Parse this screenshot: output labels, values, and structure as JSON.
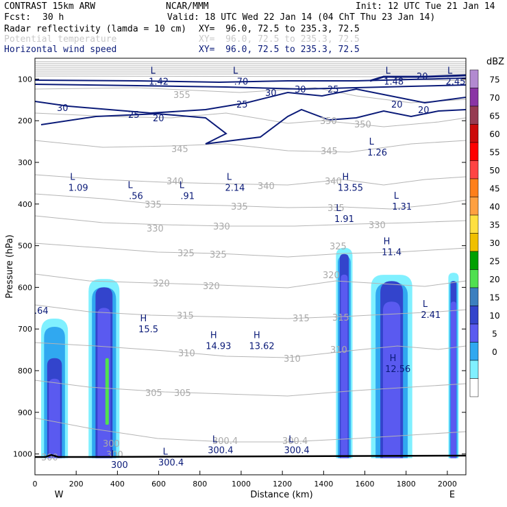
{
  "header": {
    "model": "CONTRAST 15km ARW",
    "org": "NCAR/MMM",
    "init": "Init: 12 UTC Tue 21 Jan 14",
    "fcst_label": "Fcst:",
    "fcst_value": "30 h",
    "valid": "Valid: 18 UTC Wed 22 Jan 14 (04 ChT Thu 23 Jan 14)",
    "fields": [
      {
        "name": "Radar reflectivity (lamda = 10 cm)",
        "xy": "XY=  96.0, 72.5 to 235.3, 72.5",
        "color": "#000000"
      },
      {
        "name": "Potential temperature",
        "xy": "XY=  96.0, 72.5 to 235.3, 72.5",
        "color": "#c8c8c8"
      },
      {
        "name": "Horizontal wind speed",
        "xy": "XY=  96.0, 72.5 to 235.3, 72.5",
        "color": "#0a1a78"
      }
    ]
  },
  "chart_data": {
    "type": "heatmap",
    "xlabel": "Distance (km)",
    "ylabel": "Pressure (hPa)",
    "xlim": [
      0,
      2090
    ],
    "ylim": [
      1050,
      50
    ],
    "x_ticks": [
      "0",
      "200",
      "400",
      "600",
      "800",
      "1000",
      "1200",
      "1400",
      "1600",
      "1800",
      "2000"
    ],
    "x_tick_values": [
      0,
      200,
      400,
      600,
      800,
      1000,
      1200,
      1400,
      1600,
      1800,
      2000
    ],
    "y_ticks": [
      "100",
      "200",
      "300",
      "400",
      "500",
      "600",
      "700",
      "800",
      "900",
      "1000"
    ],
    "y_tick_values": [
      100,
      200,
      300,
      400,
      500,
      600,
      700,
      800,
      900,
      1000
    ],
    "west_label": "W",
    "east_label": "E",
    "colorbar": {
      "unit": "dBZ",
      "levels": [
        "75",
        "70",
        "65",
        "60",
        "55",
        "50",
        "45",
        "40",
        "35",
        "30",
        "25",
        "20",
        "15",
        "10",
        "5",
        "0"
      ],
      "colors": [
        "#b28ad0",
        "#8a35a5",
        "#963b52",
        "#cc0a0a",
        "#ff0000",
        "#ff4444",
        "#ff7f1a",
        "#ffa040",
        "#ffe040",
        "#f0c000",
        "#00a000",
        "#50e050",
        "#3c7fbf",
        "#3344cc",
        "#5a5af0",
        "#30a8f0",
        "#80f0ff",
        "#ffffff"
      ]
    },
    "reflectivity_cells": [
      {
        "x_center": 95,
        "x_halfwidth_base": 65,
        "top_hpa": 675,
        "intensity_top_hpa": 770
      },
      {
        "x_center": 335,
        "x_halfwidth_base": 75,
        "top_hpa": 580,
        "intensity_top_hpa": 600,
        "core_35dbz": [
          770,
          930
        ]
      },
      {
        "x_center": 1500,
        "x_halfwidth_base": 40,
        "top_hpa": 505,
        "intensity_top_hpa": 520
      },
      {
        "x_center": 1730,
        "x_halfwidth_base": 100,
        "top_hpa": 570,
        "intensity_top_hpa": 585
      },
      {
        "x_center": 2030,
        "x_halfwidth_base": 25,
        "top_hpa": 565,
        "intensity_top_hpa": 585
      }
    ],
    "theta_labels": [
      "355",
      "350",
      "350",
      "345",
      "345",
      "340",
      "340",
      "340",
      "335",
      "335",
      "335",
      "330",
      "330",
      "330",
      "325",
      "325",
      "325",
      "320",
      "320",
      "320",
      "315",
      "315",
      "315",
      "310",
      "310",
      "310",
      "305",
      "305",
      "300",
      "300",
      "300",
      "300.4",
      "300.4",
      ".64"
    ],
    "wind_labels": [
      "30",
      "30",
      "30",
      "25",
      "25",
      "25",
      "20",
      "20",
      "20",
      "20"
    ],
    "extrema": [
      {
        "kind": "L",
        "value": "1.42",
        "x": 600,
        "p": 100
      },
      {
        "kind": "L",
        "value": ".70",
        "x": 1000,
        "p": 100
      },
      {
        "kind": "L",
        "value": "1.48",
        "x": 1740,
        "p": 100
      },
      {
        "kind": "L",
        "value": "2.45",
        "x": 2040,
        "p": 100
      },
      {
        "kind": "L",
        "value": "1.26",
        "x": 1660,
        "p": 270
      },
      {
        "kind": "L",
        "value": "1.09",
        "x": 210,
        "p": 355
      },
      {
        "kind": "L",
        "value": ".56",
        "x": 490,
        "p": 375
      },
      {
        "kind": "L",
        "value": ".91",
        "x": 740,
        "p": 375
      },
      {
        "kind": "L",
        "value": "2.14",
        "x": 970,
        "p": 355
      },
      {
        "kind": "H",
        "value": "13.55",
        "x": 1530,
        "p": 355
      },
      {
        "kind": "L",
        "value": "1.31",
        "x": 1780,
        "p": 400
      },
      {
        "kind": "L",
        "value": "1.91",
        "x": 1500,
        "p": 430
      },
      {
        "kind": "H",
        "value": "11.4",
        "x": 1730,
        "p": 510
      },
      {
        "kind": "L",
        "value": "2.41",
        "x": 1920,
        "p": 660
      },
      {
        "kind": "H",
        "value": "15.5",
        "x": 550,
        "p": 695
      },
      {
        "kind": "H",
        "value": "14.93",
        "x": 890,
        "p": 735
      },
      {
        "kind": "H",
        "value": "13.62",
        "x": 1100,
        "p": 735
      },
      {
        "kind": "H",
        "value": "12.56",
        "x": 1760,
        "p": 790
      },
      {
        "kind": "L",
        "value": "300.4",
        "x": 900,
        "p": 985
      },
      {
        "kind": "L",
        "value": "300.4",
        "x": 1270,
        "p": 985
      },
      {
        "kind": "L",
        "value": "300.4",
        "x": 660,
        "p": 1015
      },
      {
        "kind": "L",
        "value": "300",
        "x": 410,
        "p": 1020
      }
    ]
  }
}
